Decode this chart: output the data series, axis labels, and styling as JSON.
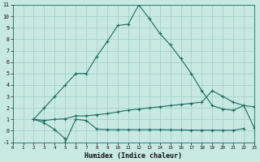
{
  "xlabel": "Humidex (Indice chaleur)",
  "bg_color": "#c8e8e2",
  "grid_color": "#9ecdc5",
  "line_color": "#1a6e5e",
  "xlim": [
    0,
    23
  ],
  "ylim": [
    -1,
    11
  ],
  "xticks": [
    0,
    1,
    2,
    3,
    4,
    5,
    6,
    7,
    8,
    9,
    10,
    11,
    12,
    13,
    14,
    15,
    16,
    17,
    18,
    19,
    20,
    21,
    22,
    23
  ],
  "yticks": [
    -1,
    0,
    1,
    2,
    3,
    4,
    5,
    6,
    7,
    8,
    9,
    10,
    11
  ],
  "line1_x": [
    2,
    3,
    4,
    5,
    6,
    7,
    8,
    9,
    10,
    11,
    12,
    13,
    14,
    15,
    16,
    17,
    18,
    19,
    20,
    21,
    22,
    23
  ],
  "line1_y": [
    1,
    2,
    3,
    4,
    5,
    5,
    6.5,
    7.8,
    9.2,
    9.3,
    11,
    9.8,
    8.5,
    7.5,
    6.3,
    5.0,
    3.5,
    2.2,
    1.9,
    1.8,
    2.2,
    2.1
  ],
  "line2_x": [
    2,
    3,
    4,
    5,
    5,
    6,
    7,
    8,
    9,
    10,
    11,
    12,
    13,
    14,
    15,
    16,
    17,
    18,
    19,
    20,
    21,
    22
  ],
  "line2_y": [
    1.0,
    0.7,
    0.1,
    -0.7,
    -1.0,
    1.0,
    0.9,
    0.15,
    0.1,
    0.1,
    0.1,
    0.1,
    0.1,
    0.1,
    0.08,
    0.07,
    0.06,
    0.05,
    0.05,
    0.04,
    0.04,
    0.2
  ],
  "line3_x": [
    2,
    3,
    4,
    5,
    6,
    7,
    8,
    9,
    10,
    11,
    12,
    13,
    14,
    15,
    16,
    17,
    18,
    19,
    20,
    21,
    22,
    23
  ],
  "line3_y": [
    1.0,
    0.9,
    1.0,
    1.05,
    1.3,
    1.3,
    1.4,
    1.5,
    1.65,
    1.8,
    1.9,
    2.0,
    2.1,
    2.2,
    2.3,
    2.4,
    2.5,
    3.5,
    3.0,
    2.5,
    2.2,
    0.25
  ]
}
